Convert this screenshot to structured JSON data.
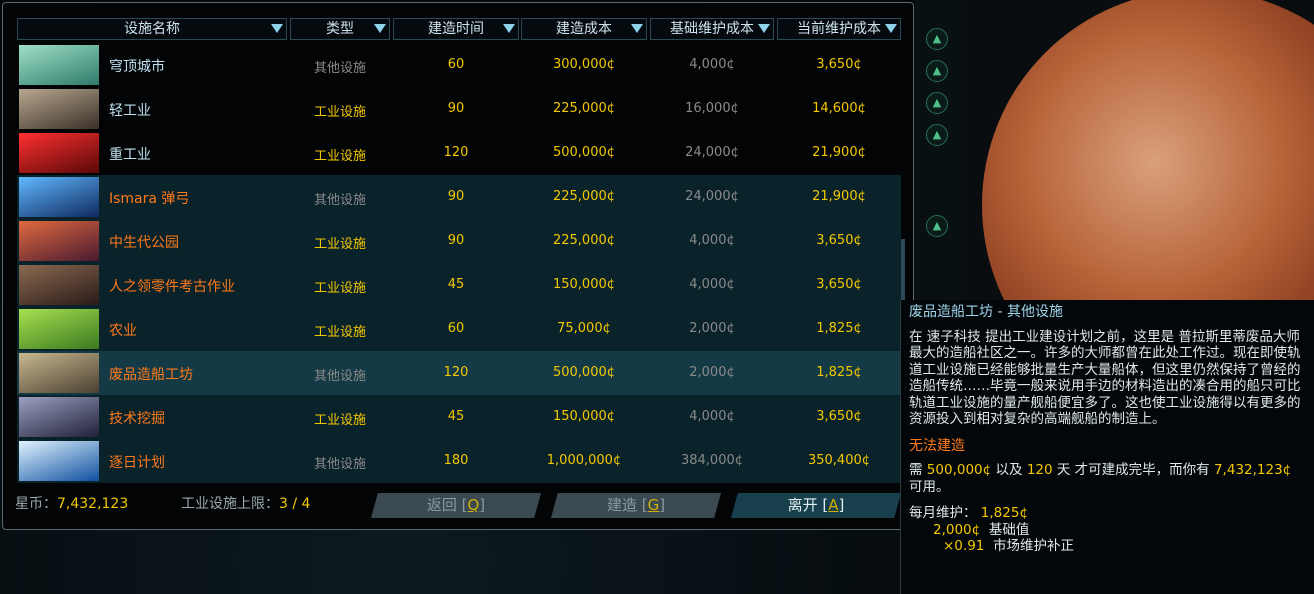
{
  "columns": [
    "设施名称",
    "类型",
    "建造时间",
    "建造成本",
    "基础维护成本",
    "当前维护成本"
  ],
  "rows": [
    {
      "name": "穹顶城市",
      "type": "其他设施",
      "time": "60",
      "cost": "300,000¢",
      "base": "4,000¢",
      "current": "3,650¢",
      "buildable": false,
      "thumb": [
        "#9fe0c8",
        "#2f7a6a"
      ]
    },
    {
      "name": "轻工业",
      "type": "工业设施",
      "time": "90",
      "cost": "225,000¢",
      "base": "16,000¢",
      "current": "14,600¢",
      "buildable": false,
      "thumb": [
        "#b8a890",
        "#3a3028"
      ]
    },
    {
      "name": "重工业",
      "type": "工业设施",
      "time": "120",
      "cost": "500,000¢",
      "base": "24,000¢",
      "current": "21,900¢",
      "buildable": false,
      "thumb": [
        "#ff3030",
        "#5a0808"
      ]
    },
    {
      "name": "Ismara 弹弓",
      "type": "其他设施",
      "time": "90",
      "cost": "225,000¢",
      "base": "24,000¢",
      "current": "21,900¢",
      "buildable": true,
      "thumb": [
        "#60b8ff",
        "#102a60"
      ]
    },
    {
      "name": "中生代公园",
      "type": "工业设施",
      "time": "90",
      "cost": "225,000¢",
      "base": "4,000¢",
      "current": "3,650¢",
      "buildable": true,
      "thumb": [
        "#e06a40",
        "#4a1a30"
      ]
    },
    {
      "name": "人之领零件考古作业",
      "type": "工业设施",
      "time": "45",
      "cost": "150,000¢",
      "base": "4,000¢",
      "current": "3,650¢",
      "buildable": true,
      "thumb": [
        "#8a6a50",
        "#2a1a18"
      ]
    },
    {
      "name": "农业",
      "type": "工业设施",
      "time": "60",
      "cost": "75,000¢",
      "base": "2,000¢",
      "current": "1,825¢",
      "buildable": true,
      "thumb": [
        "#a8e050",
        "#3a7a20"
      ]
    },
    {
      "name": "废品造船工坊",
      "type": "其他设施",
      "time": "120",
      "cost": "500,000¢",
      "base": "2,000¢",
      "current": "1,825¢",
      "buildable": true,
      "selected": true,
      "thumb": [
        "#c8b890",
        "#4a4030"
      ]
    },
    {
      "name": "技术挖掘",
      "type": "工业设施",
      "time": "45",
      "cost": "150,000¢",
      "base": "4,000¢",
      "current": "3,650¢",
      "buildable": true,
      "thumb": [
        "#9aa0c0",
        "#202038"
      ]
    },
    {
      "name": "逐日计划",
      "type": "其他设施",
      "time": "180",
      "cost": "1,000,000¢",
      "base": "384,000¢",
      "current": "350,400¢",
      "buildable": true,
      "thumb": [
        "#e0f4ff",
        "#1050a0"
      ]
    }
  ],
  "footer": {
    "credits_label": "星币：",
    "credits": "7,432,123",
    "limit_label": "工业设施上限：",
    "limit": "3 / 4"
  },
  "buttons": {
    "back": "返回 [",
    "back_key": "Q",
    "build": "建造 [",
    "build_key": "G",
    "leave": "离开 [",
    "leave_key": "A",
    "close": "]"
  },
  "tooltip": {
    "title": "废品造船工坊 - 其他设施",
    "desc": "在 速子科技 提出工业建设计划之前，这里是 普拉斯里蒂废品大师 最大的造船社区之一。许多的大师都曾在此处工作过。现在即使轨道工业设施已经能够批量生产大量船体，但这里仍然保持了曾经的造船传统……毕竟一般来说用手边的材料造出的凑合用的船只可比轨道工业设施的量产舰船便宜多了。这也使工业设施得以有更多的资源投入到相对复杂的高端舰船的制造上。",
    "warning": "无法建造",
    "req_a": "需 ",
    "req_cost": "500,000¢",
    "req_b": " 以及 ",
    "req_days": "120",
    "req_c": " 天 才可建成完毕，而你有 ",
    "req_have": "7,432,123¢",
    "req_d": " 可用。",
    "upkeep_label": "每月维护：",
    "upkeep": "1,825¢",
    "base_val": "2,000¢",
    "base_label": "基础值",
    "mult_val": "×0.91",
    "mult_label": "市场维护补正"
  }
}
